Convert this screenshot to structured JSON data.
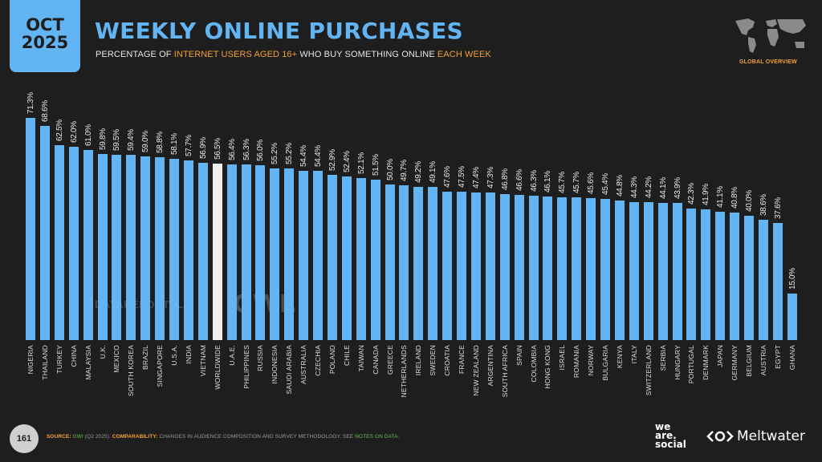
{
  "header": {
    "date_month": "OCT",
    "date_year": "2025",
    "title": "WEEKLY ONLINE PURCHASES",
    "subtitle_parts": [
      {
        "text": "PERCENTAGE OF ",
        "highlight": false
      },
      {
        "text": "INTERNET USERS AGED 16+",
        "highlight": true
      },
      {
        "text": " WHO BUY SOMETHING ONLINE ",
        "highlight": false
      },
      {
        "text": "EACH WEEK",
        "highlight": true
      }
    ],
    "region_label": "GLOBAL OVERVIEW",
    "map_icon": "world-map-icon"
  },
  "watermarks": {
    "datareportal": "DATAREPORTAL",
    "gwi": "GWI."
  },
  "footer": {
    "page_number": "161",
    "source_label": "SOURCE:",
    "source_link": "GWI",
    "source_detail": " (Q2 2025). ",
    "comparability_label": "COMPARABILITY:",
    "comparability_text": " CHANGES IN AUDIENCE COMPOSITION AND SURVEY METHODOLOGY. SEE ",
    "notes_link": "NOTES ON DATA",
    "notes_end": ".",
    "brand_1": "we are social",
    "brand_2": "Meltwater"
  },
  "colors": {
    "background": "#1e1e1e",
    "bar": "#62b4f2",
    "bar_highlight": "#f0f0f0",
    "accent": "#f4a232",
    "link": "#6bbf59"
  },
  "chart_data": {
    "type": "bar",
    "title": "WEEKLY ONLINE PURCHASES",
    "subtitle": "PERCENTAGE OF INTERNET USERS AGED 16+ WHO BUY SOMETHING ONLINE EACH WEEK",
    "xlabel": "",
    "ylabel": "",
    "ylim": [
      0,
      75
    ],
    "grid": false,
    "legend": null,
    "value_suffix": "%",
    "highlight_category": "WORLDWIDE",
    "categories": [
      "NIGERIA",
      "THAILAND",
      "TURKEY",
      "CHINA",
      "MALAYSIA",
      "U.K.",
      "MEXICO",
      "SOUTH KOREA",
      "BRAZIL",
      "SINGAPORE",
      "U.S.A.",
      "INDIA",
      "VIETNAM",
      "WORLDWIDE",
      "U.A.E.",
      "PHILIPPINES",
      "RUSSIA",
      "INDONESIA",
      "SAUDI ARABIA",
      "AUSTRALIA",
      "CZECHIA",
      "POLAND",
      "CHILE",
      "TAIWAN",
      "CANADA",
      "GREECE",
      "NETHERLANDS",
      "IRELAND",
      "SWEDEN",
      "CROATIA",
      "FRANCE",
      "NEW ZEALAND",
      "ARGENTINA",
      "SOUTH AFRICA",
      "SPAIN",
      "COLOMBIA",
      "HONG KONG",
      "ISRAEL",
      "ROMANIA",
      "NORWAY",
      "BULGARIA",
      "KENYA",
      "ITALY",
      "SWITZERLAND",
      "SERBIA",
      "HUNGARY",
      "PORTUGAL",
      "DENMARK",
      "JAPAN",
      "GERMANY",
      "BELGIUM",
      "AUSTRIA",
      "EGYPT",
      "GHANA"
    ],
    "values": [
      71.3,
      68.6,
      62.5,
      62.0,
      61.0,
      59.8,
      59.5,
      59.4,
      59.0,
      58.8,
      58.1,
      57.7,
      56.9,
      56.5,
      56.4,
      56.3,
      56.0,
      55.2,
      55.2,
      54.4,
      54.4,
      52.9,
      52.4,
      52.1,
      51.5,
      50.0,
      49.7,
      49.2,
      49.1,
      47.6,
      47.5,
      47.4,
      47.3,
      46.8,
      46.6,
      46.3,
      46.1,
      45.7,
      45.7,
      45.6,
      45.4,
      44.8,
      44.3,
      44.2,
      44.1,
      43.9,
      42.3,
      41.9,
      41.1,
      40.8,
      40.0,
      38.6,
      37.6,
      15.0
    ],
    "labels": [
      "71.3%",
      "68.6%",
      "62.5%",
      "62.0%",
      "61.0%",
      "59.8%",
      "59.5%",
      "59.4%",
      "59.0%",
      "58.8%",
      "58.1%",
      "57.7%",
      "56.9%",
      "56.5%",
      "56.4%",
      "56.3%",
      "56.0%",
      "55.2%",
      "55.2%",
      "54.4%",
      "54.4%",
      "52.9%",
      "52.4%",
      "52.1%",
      "51.5%",
      "50.0%",
      "49.7%",
      "49.2%",
      "49.1%",
      "47.6%",
      "47.5%",
      "47.4%",
      "47.3%",
      "46.8%",
      "46.6%",
      "46.3%",
      "46.1%",
      "45.7%",
      "45.7%",
      "45.6%",
      "45.4%",
      "44.8%",
      "44.3%",
      "44.2%",
      "44.1%",
      "43.9%",
      "42.3%",
      "41.9%",
      "41.1%",
      "40.8%",
      "40.0%",
      "38.6%",
      "37.6%",
      "15.0%"
    ]
  }
}
